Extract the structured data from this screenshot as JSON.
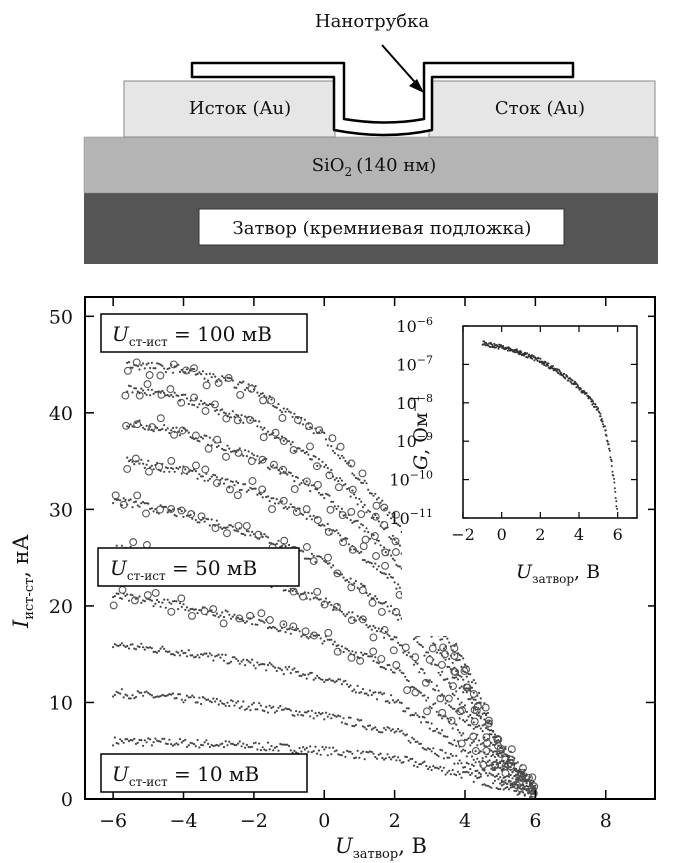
{
  "device": {
    "nanotube_label": "Нанотрубка",
    "source_label": "Исток (Au)",
    "drain_label": "Сток (Au)",
    "oxide_label": "SiO",
    "oxide_sub": "2",
    "oxide_thickness": "(140 нм)",
    "gate_label": "Затвор (кремниевая подложка)",
    "colors": {
      "electrode": "#e6e6e6",
      "oxide": "#b4b4b4",
      "gate": "#555555",
      "nanotube": "#ffffff"
    }
  },
  "chart_data": [
    {
      "type": "scatter",
      "title": "",
      "xlabel": "U",
      "xlabel_sub": "затвор",
      "xlabel_unit": ", В",
      "ylabel": "I",
      "ylabel_sub": "ист-ст",
      "ylabel_unit": ",  нА",
      "xlim": [
        -6.8,
        9.4
      ],
      "ylim": [
        0,
        52
      ],
      "x_ticks": [
        -6,
        -4,
        -2,
        0,
        2,
        4,
        6,
        8
      ],
      "y_ticks": [
        0,
        10,
        20,
        30,
        40,
        50
      ],
      "annotations": [
        {
          "text": "U",
          "sub": "ст-ист",
          "rest": " = 100 мВ"
        },
        {
          "text": "U",
          "sub": "ст-ист",
          "rest": " = 50 мВ"
        },
        {
          "text": "U",
          "sub": "ст-ист",
          "rest": " = 10 мВ"
        }
      ],
      "series": [
        {
          "bias_mV": 10,
          "x": [
            -6,
            -4,
            -2,
            0,
            2,
            4,
            5,
            6
          ],
          "values": [
            6,
            5.8,
            5.5,
            5.0,
            4.2,
            2.5,
            1.3,
            0.4
          ]
        },
        {
          "bias_mV": 20,
          "x": [
            -6,
            -4,
            -2,
            0,
            2,
            4,
            5,
            6
          ],
          "values": [
            11,
            10.4,
            9.6,
            8.6,
            7.0,
            3.6,
            1.8,
            0.5
          ]
        },
        {
          "bias_mV": 30,
          "x": [
            -6,
            -4,
            -2,
            0,
            2,
            4,
            5,
            6
          ],
          "values": [
            16,
            15.2,
            14.0,
            12.5,
            10.2,
            5.0,
            2.3,
            0.6
          ]
        },
        {
          "bias_mV": 40,
          "x": [
            -6,
            -4,
            -2,
            0,
            2,
            4,
            5,
            6
          ],
          "values": [
            21,
            20.0,
            18.5,
            16.5,
            13.5,
            6.5,
            2.8,
            0.7
          ]
        },
        {
          "bias_mV": 50,
          "x": [
            -6,
            -4,
            -2,
            0,
            2,
            4,
            5,
            6
          ],
          "values": [
            26,
            25.0,
            23.0,
            20.5,
            16.5,
            8.0,
            3.4,
            0.8
          ]
        },
        {
          "bias_mV": 60,
          "x": [
            -6,
            -4,
            -2,
            0,
            2,
            4,
            5,
            6
          ],
          "values": [
            31,
            29.5,
            27.5,
            24.5,
            19.5,
            9.5,
            4.0,
            0.9
          ]
        },
        {
          "bias_mV": 70,
          "x": [
            -5.6,
            -4,
            -2,
            0,
            2,
            4,
            5,
            6
          ],
          "values": [
            35,
            34.0,
            32.0,
            28.5,
            22.5,
            11.0,
            4.6,
            1.0
          ]
        },
        {
          "bias_mV": 80,
          "x": [
            -5.6,
            -4,
            -2,
            0,
            2,
            4,
            5,
            6
          ],
          "values": [
            39,
            38.0,
            35.5,
            31.5,
            25.0,
            12.0,
            5.0,
            1.1
          ]
        },
        {
          "bias_mV": 90,
          "x": [
            -5.6,
            -4,
            -2,
            0,
            2,
            4,
            5,
            6
          ],
          "values": [
            42.5,
            41.5,
            39.0,
            34.5,
            27.0,
            13.0,
            5.4,
            1.2
          ]
        },
        {
          "bias_mV": 100,
          "x": [
            -5.6,
            -4,
            -2,
            0,
            2,
            4,
            5,
            6
          ],
          "values": [
            45,
            44.5,
            42.5,
            37.5,
            29.0,
            14.0,
            5.8,
            1.3
          ]
        }
      ]
    },
    {
      "type": "line",
      "title": "",
      "xlabel": "U",
      "xlabel_sub": "затвор",
      "xlabel_unit": ", В",
      "ylabel": "G",
      "ylabel_unit": ", Ом",
      "ylabel_sup": "−1",
      "xlim": [
        -2,
        7
      ],
      "ylim_log10": [
        -11,
        -6
      ],
      "log_scale_y": true,
      "x_ticks": [
        -2,
        0,
        2,
        4,
        6
      ],
      "y_tick_exponents": [
        -6,
        -7,
        -8,
        -9,
        -10,
        -11
      ],
      "y_tick_base": "10",
      "x": [
        -1,
        0,
        1,
        2,
        3,
        4,
        4.5,
        5,
        5.3,
        5.6,
        5.8,
        6
      ],
      "log10_values": [
        -6.45,
        -6.55,
        -6.7,
        -6.9,
        -7.2,
        -7.6,
        -7.85,
        -8.2,
        -8.6,
        -9.3,
        -10.0,
        -10.9
      ]
    }
  ]
}
